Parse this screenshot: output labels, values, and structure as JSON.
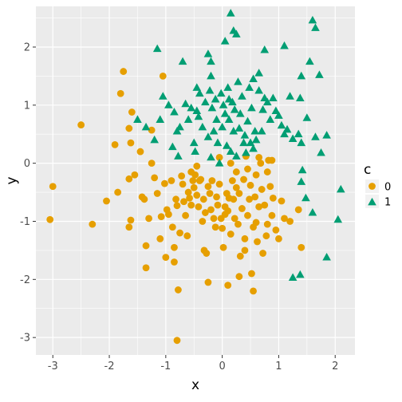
{
  "chart_data": {
    "type": "scatter",
    "xlabel": "x",
    "ylabel": "y",
    "xlim": [
      -3.3,
      2.35
    ],
    "ylim": [
      -3.3,
      2.7
    ],
    "x_ticks": [
      -3,
      -2,
      -1,
      0,
      1,
      2
    ],
    "y_ticks": [
      -3,
      -2,
      -1,
      0,
      1,
      2
    ],
    "grid": true,
    "legend": {
      "title": "c",
      "placement": "right",
      "entries": [
        {
          "label": "0",
          "color": "#E69F00",
          "shape": "circle"
        },
        {
          "label": "1",
          "color": "#009E73",
          "shape": "triangle"
        }
      ]
    },
    "series": [
      {
        "name": "0",
        "color": "#E69F00",
        "shape": "circle",
        "points": [
          [
            -3.0,
            -0.4
          ],
          [
            -3.05,
            -0.97
          ],
          [
            -2.5,
            0.66
          ],
          [
            -2.3,
            -1.05
          ],
          [
            -2.05,
            -0.65
          ],
          [
            -1.9,
            0.32
          ],
          [
            -1.8,
            1.2
          ],
          [
            -1.75,
            1.58
          ],
          [
            -1.85,
            -0.5
          ],
          [
            -1.65,
            -0.27
          ],
          [
            -1.65,
            0.6
          ],
          [
            -1.62,
            0.35
          ],
          [
            -1.6,
            0.88
          ],
          [
            -1.62,
            -0.98
          ],
          [
            -1.65,
            -1.1
          ],
          [
            -1.55,
            -0.2
          ],
          [
            -1.45,
            0.2
          ],
          [
            -1.42,
            -0.58
          ],
          [
            -1.38,
            -0.62
          ],
          [
            -1.35,
            -1.42
          ],
          [
            -1.35,
            -1.8
          ],
          [
            -1.3,
            -0.95
          ],
          [
            -1.25,
            0.57
          ],
          [
            -1.25,
            0.0
          ],
          [
            -1.2,
            -0.25
          ],
          [
            -1.15,
            -0.52
          ],
          [
            -1.1,
            -1.3
          ],
          [
            -1.08,
            -0.92
          ],
          [
            -1.05,
            1.5
          ],
          [
            -1.02,
            -0.35
          ],
          [
            -1.0,
            -1.62
          ],
          [
            -0.98,
            -0.8
          ],
          [
            -0.95,
            -0.88
          ],
          [
            -0.9,
            -0.3
          ],
          [
            -0.88,
            -1.1
          ],
          [
            -0.85,
            -1.45
          ],
          [
            -0.85,
            -1.7
          ],
          [
            -0.82,
            -0.62
          ],
          [
            -0.8,
            -0.73
          ],
          [
            -0.78,
            -2.18
          ],
          [
            -0.8,
            -3.05
          ],
          [
            -0.75,
            -1.2
          ],
          [
            -0.72,
            -0.22
          ],
          [
            -0.7,
            -0.36
          ],
          [
            -0.68,
            -0.66
          ],
          [
            -0.65,
            -0.9
          ],
          [
            -0.62,
            -1.25
          ],
          [
            -0.6,
            -0.5
          ],
          [
            -0.58,
            -0.6
          ],
          [
            -0.55,
            -0.72
          ],
          [
            -0.52,
            -0.3
          ],
          [
            -0.5,
            -0.42
          ],
          [
            -0.48,
            -0.2
          ],
          [
            -0.45,
            -0.55
          ],
          [
            -0.42,
            -0.75
          ],
          [
            -0.4,
            -0.3
          ],
          [
            -0.38,
            -0.28
          ],
          [
            -0.35,
            -1.0
          ],
          [
            -0.33,
            -0.62
          ],
          [
            -0.32,
            -1.5
          ],
          [
            -0.3,
            -0.85
          ],
          [
            -0.28,
            -1.55
          ],
          [
            -0.25,
            -0.4
          ],
          [
            -0.22,
            -0.52
          ],
          [
            -0.2,
            -0.8
          ],
          [
            -0.18,
            -0.3
          ],
          [
            -0.15,
            -0.95
          ],
          [
            -0.12,
            -1.1
          ],
          [
            -0.1,
            -0.58
          ],
          [
            -0.08,
            -0.72
          ],
          [
            -0.05,
            -0.36
          ],
          [
            -0.02,
            -0.95
          ],
          [
            0.0,
            -1.12
          ],
          [
            0.02,
            -1.45
          ],
          [
            0.05,
            -0.75
          ],
          [
            0.08,
            -0.52
          ],
          [
            0.1,
            -0.82
          ],
          [
            0.12,
            -0.6
          ],
          [
            0.15,
            -1.22
          ],
          [
            0.18,
            -0.3
          ],
          [
            0.2,
            -0.62
          ],
          [
            0.22,
            -0.95
          ],
          [
            0.25,
            -0.42
          ],
          [
            0.28,
            -1.05
          ],
          [
            0.3,
            -0.52
          ],
          [
            0.32,
            -1.6
          ],
          [
            0.35,
            -0.78
          ],
          [
            0.38,
            -0.28
          ],
          [
            0.4,
            -1.3
          ],
          [
            0.42,
            0.12
          ],
          [
            0.45,
            -0.9
          ],
          [
            0.48,
            -0.62
          ],
          [
            0.5,
            -0.38
          ],
          [
            0.52,
            -1.9
          ],
          [
            0.55,
            -1.1
          ],
          [
            0.58,
            -0.58
          ],
          [
            0.6,
            -0.2
          ],
          [
            0.62,
            -1.35
          ],
          [
            0.65,
            -0.75
          ],
          [
            0.68,
            0.0
          ],
          [
            0.7,
            -0.45
          ],
          [
            0.72,
            -1.55
          ],
          [
            0.75,
            -0.72
          ],
          [
            0.78,
            -1.25
          ],
          [
            0.8,
            -1.05
          ],
          [
            0.82,
            0.05
          ],
          [
            0.85,
            -0.4
          ],
          [
            0.88,
            -0.9
          ],
          [
            0.9,
            -0.6
          ],
          [
            0.95,
            -1.15
          ],
          [
            1.0,
            -1.3
          ],
          [
            1.05,
            -0.65
          ],
          [
            1.1,
            -0.95
          ],
          [
            1.2,
            -1.0
          ],
          [
            1.35,
            -0.8
          ],
          [
            1.4,
            -1.45
          ],
          [
            -0.25,
            -2.05
          ],
          [
            0.1,
            -2.1
          ],
          [
            0.3,
            -1.95
          ],
          [
            0.55,
            -2.2
          ],
          [
            -0.05,
            0.1
          ],
          [
            0.15,
            0.0
          ],
          [
            0.25,
            -0.15
          ],
          [
            0.45,
            -0.1
          ],
          [
            0.65,
            0.1
          ],
          [
            0.8,
            -0.15
          ],
          [
            0.88,
            0.05
          ],
          [
            -0.55,
            -0.15
          ],
          [
            -0.45,
            -0.05
          ],
          [
            0.6,
            -1.02
          ],
          [
            0.4,
            -1.5
          ],
          [
            0.05,
            -0.88
          ]
        ]
      },
      {
        "name": "1",
        "color": "#009E73",
        "shape": "triangle",
        "points": [
          [
            0.15,
            2.58
          ],
          [
            0.2,
            2.28
          ],
          [
            0.25,
            2.22
          ],
          [
            0.05,
            2.1
          ],
          [
            -1.15,
            1.97
          ],
          [
            -0.7,
            1.75
          ],
          [
            -0.25,
            1.88
          ],
          [
            -0.2,
            1.75
          ],
          [
            0.65,
            1.55
          ],
          [
            0.55,
            1.45
          ],
          [
            0.75,
            1.95
          ],
          [
            1.1,
            2.02
          ],
          [
            1.6,
            2.46
          ],
          [
            1.65,
            2.33
          ],
          [
            1.4,
            1.5
          ],
          [
            -1.35,
            0.62
          ],
          [
            -1.5,
            0.75
          ],
          [
            -1.2,
            0.4
          ],
          [
            -1.1,
            0.75
          ],
          [
            -1.05,
            1.15
          ],
          [
            -0.95,
            1.0
          ],
          [
            -0.88,
            0.28
          ],
          [
            -0.85,
            0.88
          ],
          [
            -0.8,
            0.55
          ],
          [
            -0.78,
            0.12
          ],
          [
            -0.75,
            0.62
          ],
          [
            -0.65,
            1.02
          ],
          [
            -0.6,
            0.75
          ],
          [
            -0.55,
            0.95
          ],
          [
            -0.5,
            0.35
          ],
          [
            -0.48,
            0.2
          ],
          [
            -0.45,
            1.3
          ],
          [
            -0.42,
            0.8
          ],
          [
            -0.4,
            1.2
          ],
          [
            -0.35,
            0.62
          ],
          [
            -0.3,
            1.05
          ],
          [
            -0.25,
            0.45
          ],
          [
            -0.22,
            1.25
          ],
          [
            -0.2,
            0.1
          ],
          [
            -0.18,
            0.95
          ],
          [
            -0.15,
            0.55
          ],
          [
            -0.12,
            1.1
          ],
          [
            -0.1,
            0.75
          ],
          [
            -0.08,
            0.35
          ],
          [
            -0.05,
            0.0
          ],
          [
            -0.02,
            1.2
          ],
          [
            0.0,
            0.62
          ],
          [
            0.02,
            1.0
          ],
          [
            0.05,
            0.85
          ],
          [
            0.08,
            0.3
          ],
          [
            0.1,
            1.3
          ],
          [
            0.12,
            0.75
          ],
          [
            0.15,
            0.2
          ],
          [
            0.18,
            1.05
          ],
          [
            0.2,
            0.55
          ],
          [
            0.22,
            0.92
          ],
          [
            0.25,
            0.12
          ],
          [
            0.28,
            1.4
          ],
          [
            0.3,
            0.6
          ],
          [
            0.32,
            0.85
          ],
          [
            0.35,
            1.15
          ],
          [
            0.38,
            0.35
          ],
          [
            0.4,
            0.48
          ],
          [
            0.42,
            0.18
          ],
          [
            0.45,
            0.72
          ],
          [
            0.48,
            1.3
          ],
          [
            0.5,
            0.35
          ],
          [
            0.52,
            0.95
          ],
          [
            0.55,
            0.25
          ],
          [
            0.58,
            0.55
          ],
          [
            0.6,
            0.4
          ],
          [
            0.65,
            1.25
          ],
          [
            0.7,
            0.55
          ],
          [
            0.72,
            0.92
          ],
          [
            0.75,
            1.12
          ],
          [
            0.8,
            1.05
          ],
          [
            0.85,
            0.75
          ],
          [
            0.9,
            1.12
          ],
          [
            0.95,
            0.9
          ],
          [
            1.0,
            0.82
          ],
          [
            1.05,
            0.65
          ],
          [
            1.1,
            0.5
          ],
          [
            1.15,
            0.58
          ],
          [
            1.2,
            1.15
          ],
          [
            1.25,
            0.42
          ],
          [
            1.35,
            0.5
          ],
          [
            1.38,
            1.12
          ],
          [
            1.4,
            0.35
          ],
          [
            1.5,
            0.78
          ],
          [
            1.55,
            1.75
          ],
          [
            1.65,
            0.45
          ],
          [
            1.75,
            0.18
          ],
          [
            1.85,
            0.48
          ],
          [
            1.4,
            -0.32
          ],
          [
            1.42,
            -0.12
          ],
          [
            1.48,
            -0.6
          ],
          [
            1.6,
            -0.85
          ],
          [
            1.85,
            -1.62
          ],
          [
            2.05,
            -0.97
          ],
          [
            2.1,
            -0.45
          ],
          [
            1.25,
            -1.97
          ],
          [
            1.38,
            -1.92
          ],
          [
            1.72,
            1.52
          ],
          [
            -0.45,
            0.9
          ],
          [
            -0.2,
            1.5
          ],
          [
            0.12,
            1.1
          ]
        ]
      }
    ]
  }
}
